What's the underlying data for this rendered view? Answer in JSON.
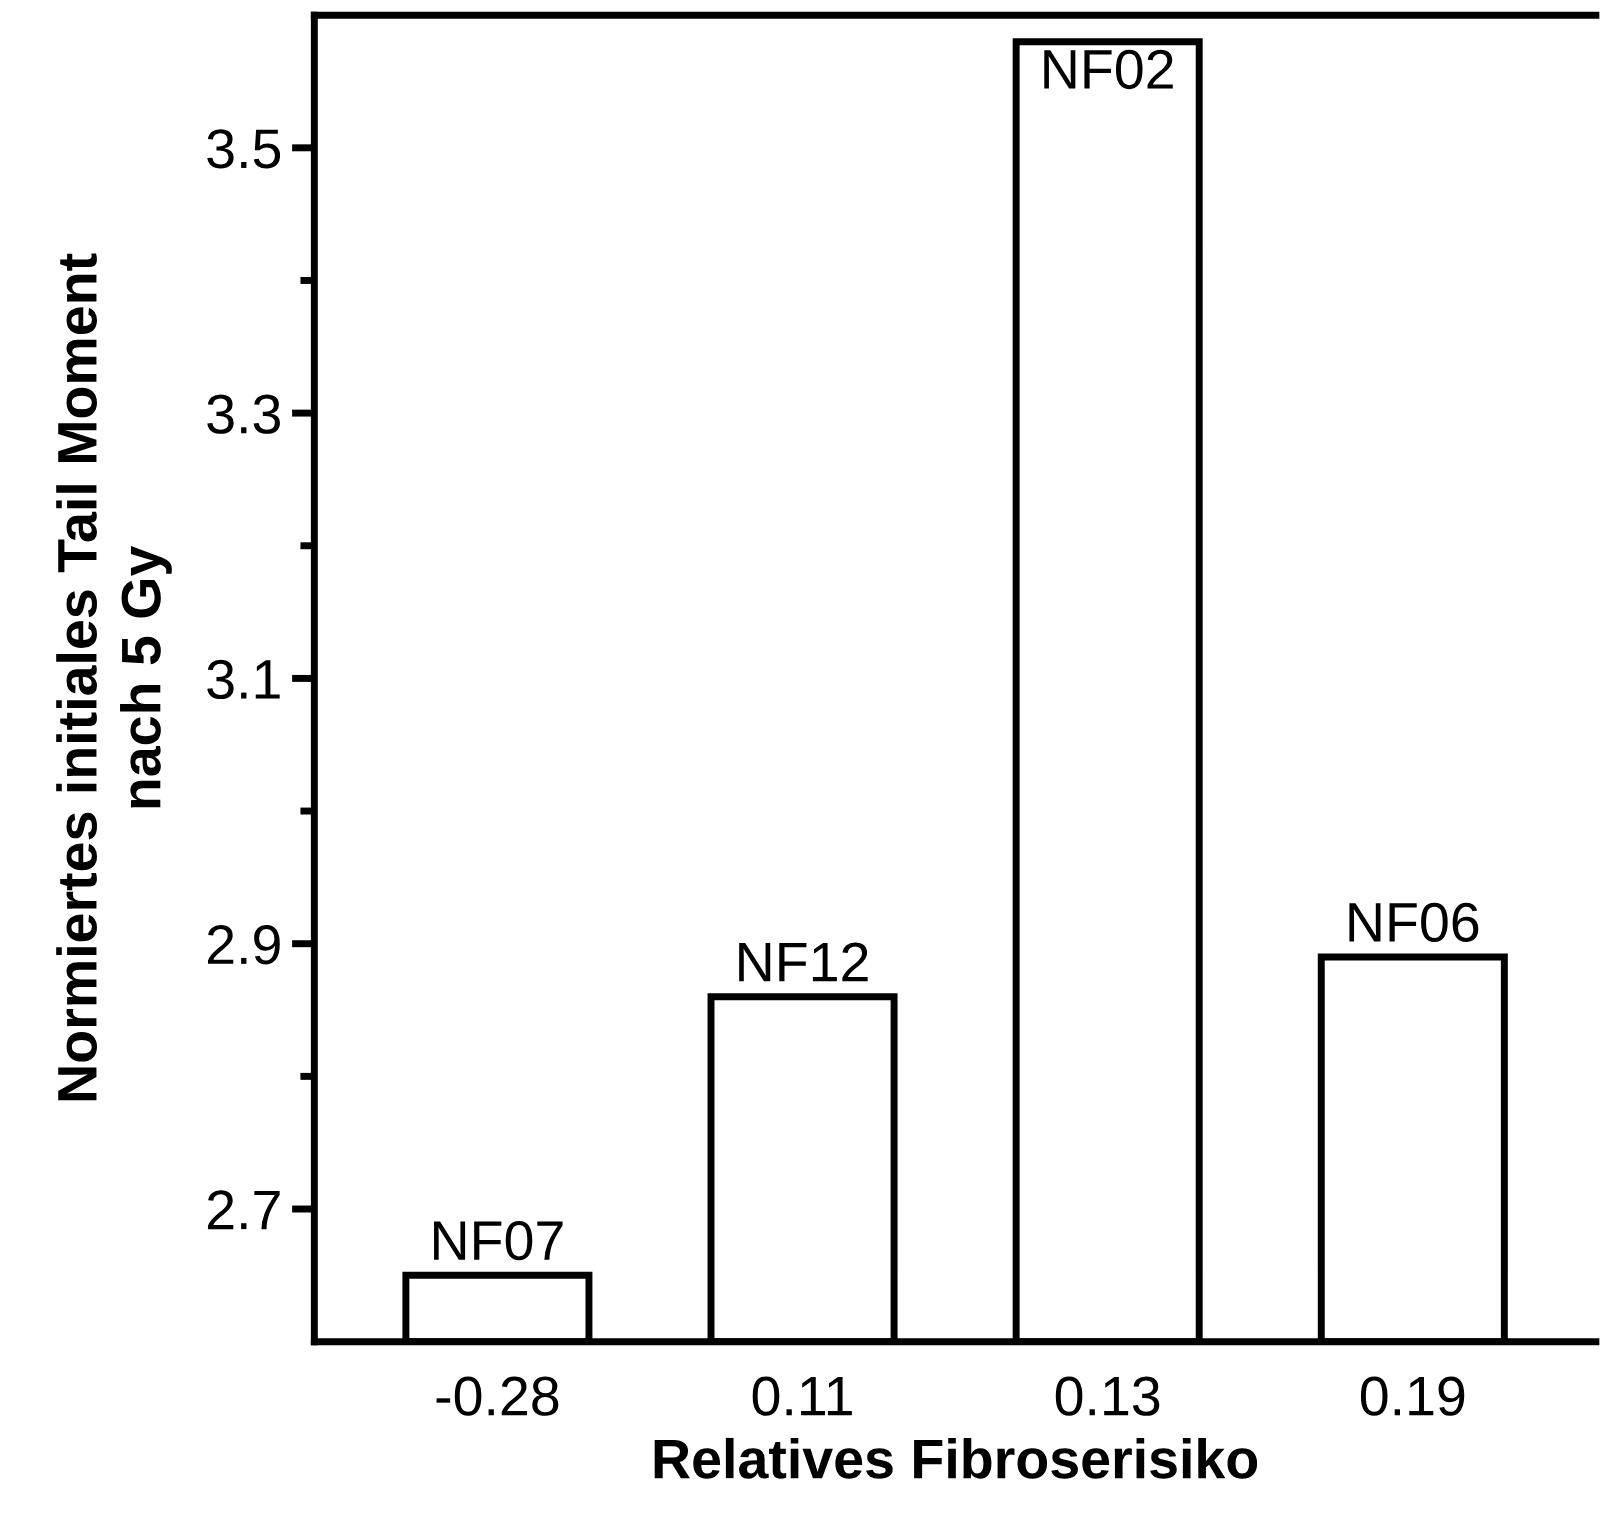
{
  "chart_data": {
    "type": "bar",
    "xlabel": "Relatives Fibroserisiko",
    "ylabel": "Normiertes initiales Tail Moment\nnach 5 Gy",
    "categories": [
      "-0.28",
      "0.11",
      "0.13",
      "0.19"
    ],
    "values": [
      2.65,
      2.86,
      3.58,
      2.89
    ],
    "value_labels": [
      "NF07",
      "NF12",
      "NF02",
      "NF06"
    ],
    "color": "#ffffff",
    "ylim": [
      2.6,
      3.6
    ],
    "yticks": [
      2.7,
      {
        "value": 2.8,
        "label": null
      },
      2.9,
      {
        "value": 3.0,
        "label": null
      },
      3.1,
      {
        "value": 3.2,
        "label": null
      },
      3.3,
      {
        "value": 3.4,
        "label": null
      },
      3.5
    ],
    "grid": false
  }
}
